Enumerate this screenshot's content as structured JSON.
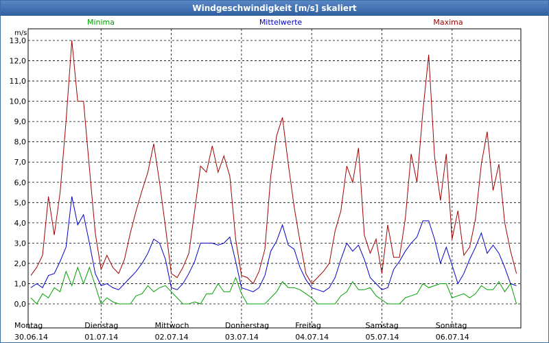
{
  "window": {
    "title": "Windgeschwindigkeit [m/s] skaliert"
  },
  "chart_data": {
    "type": "line",
    "title": "Windgeschwindigkeit [m/s] skaliert",
    "ylabel": "m/s",
    "ylim": [
      0,
      13
    ],
    "yticks": [
      "0,0",
      "1,0",
      "2,0",
      "3,0",
      "4,0",
      "5,0",
      "6,0",
      "7,0",
      "8,0",
      "9,0",
      "10,0",
      "11,0",
      "12,0",
      "13,0"
    ],
    "grid": true,
    "legend_position": "top",
    "x_day_labels": [
      {
        "day": "Montag",
        "date": "30.06.14"
      },
      {
        "day": "Dienstag",
        "date": "01.07.14"
      },
      {
        "day": "Mittwoch",
        "date": "02.07.14"
      },
      {
        "day": "Donnerstag",
        "date": "03.07.14"
      },
      {
        "day": "Freitag",
        "date": "04.07.14"
      },
      {
        "day": "Samstag",
        "date": "05.07.14"
      },
      {
        "day": "Sonntag",
        "date": "06.07.14"
      }
    ],
    "points_per_day": 12,
    "series": [
      {
        "name": "Minima",
        "color": "#00a000",
        "values": [
          0.3,
          0.0,
          0.5,
          0.3,
          0.8,
          0.6,
          1.6,
          0.9,
          1.8,
          1.0,
          1.8,
          0.9,
          0.0,
          0.3,
          0.1,
          0.0,
          0.0,
          0.0,
          0.4,
          0.5,
          0.9,
          0.6,
          0.8,
          0.9,
          0.6,
          0.3,
          0.0,
          0.0,
          0.1,
          0.0,
          0.5,
          0.5,
          1.0,
          0.6,
          0.6,
          1.3,
          0.5,
          0.0,
          0.0,
          0.0,
          0.0,
          0.3,
          0.6,
          1.1,
          0.8,
          0.8,
          0.7,
          0.5,
          0.3,
          0.0,
          0.0,
          0.0,
          0.0,
          0.4,
          0.6,
          1.1,
          0.7,
          0.7,
          0.8,
          0.4,
          0.2,
          0.0,
          0.0,
          0.0,
          0.3,
          0.4,
          0.5,
          1.0,
          0.8,
          0.9,
          1.0,
          1.0,
          0.3,
          0.4,
          0.5,
          0.3,
          0.5,
          0.9,
          0.7,
          0.7,
          1.1,
          0.6,
          1.0,
          0.0
        ]
      },
      {
        "name": "Mittelwerte",
        "color": "#0000c8",
        "values": [
          0.8,
          1.0,
          0.8,
          1.4,
          1.5,
          2.1,
          2.8,
          5.3,
          3.9,
          4.4,
          3.0,
          1.5,
          0.9,
          1.0,
          0.8,
          0.7,
          1.0,
          1.3,
          1.6,
          2.0,
          2.5,
          3.2,
          3.0,
          2.2,
          0.8,
          0.7,
          1.0,
          1.5,
          2.1,
          3.0,
          3.0,
          3.0,
          2.9,
          3.0,
          3.3,
          2.1,
          0.8,
          0.7,
          0.6,
          0.8,
          1.4,
          2.6,
          3.1,
          3.9,
          2.9,
          2.7,
          1.8,
          1.2,
          0.8,
          0.7,
          0.6,
          0.8,
          1.3,
          2.2,
          3.0,
          2.6,
          2.9,
          2.2,
          1.3,
          1.0,
          0.7,
          0.8,
          1.7,
          2.1,
          2.6,
          3.0,
          3.3,
          4.1,
          4.1,
          3.2,
          2.0,
          2.8,
          1.9,
          1.0,
          1.5,
          2.2,
          2.8,
          3.5,
          2.5,
          2.9,
          2.5,
          1.8,
          1.0,
          0.9
        ]
      },
      {
        "name": "Maxima",
        "color": "#a00000",
        "values": [
          1.4,
          1.8,
          2.4,
          5.3,
          3.4,
          5.5,
          9.0,
          13.0,
          10.0,
          10.0,
          6.7,
          3.5,
          1.7,
          2.4,
          1.8,
          1.5,
          2.2,
          3.5,
          4.6,
          5.6,
          6.5,
          7.9,
          6.0,
          3.8,
          1.5,
          1.3,
          1.8,
          2.5,
          4.6,
          6.8,
          6.5,
          7.8,
          6.5,
          7.3,
          6.3,
          3.2,
          1.4,
          1.3,
          1.0,
          1.6,
          2.7,
          6.3,
          8.3,
          9.2,
          6.9,
          4.8,
          3.1,
          1.5,
          1.0,
          1.3,
          1.6,
          2.0,
          3.6,
          4.6,
          6.8,
          6.0,
          7.7,
          3.4,
          2.5,
          3.2,
          1.5,
          3.9,
          2.3,
          2.3,
          4.2,
          7.4,
          6.0,
          9.5,
          12.3,
          7.3,
          5.1,
          7.4,
          3.2,
          4.6,
          2.4,
          2.8,
          4.2,
          6.9,
          8.5,
          5.6,
          6.9,
          4.0,
          2.6,
          1.5
        ]
      }
    ]
  }
}
